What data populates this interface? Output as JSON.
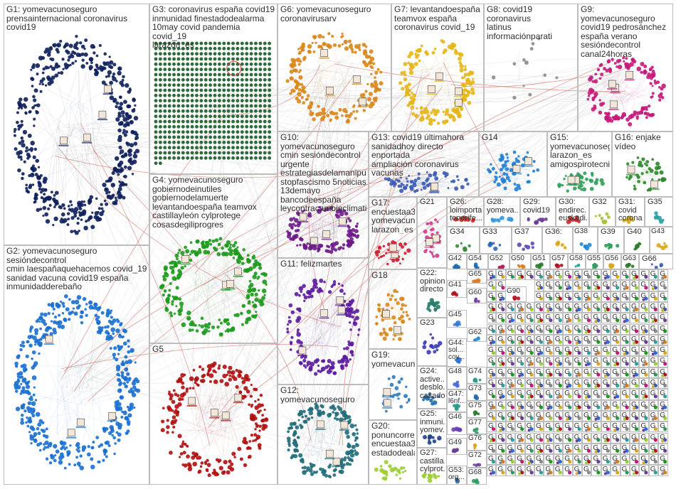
{
  "groups": [
    {
      "id": "G1",
      "title": "G1: yomevacunoseguro\nprensainternacional coronavirus covid19",
      "color": "#0d1f5c",
      "n": 460,
      "shape": "ellipse"
    },
    {
      "id": "G2",
      "title": "G2: yomevacunoseguro sesióndecontrol\ncmin laespañaquehacemos covid_19\nsanidad vacuna covid19 españa\ninmunidadderebaño",
      "color": "#1a6fd1",
      "n": 420,
      "shape": "ellipse"
    },
    {
      "id": "G3",
      "title": "G3: coronavirus españa covid19\ninmunidad finestadodealarma\n10may covid pandemia covid_19\nlarazon_es",
      "color": "#2e6b3a",
      "n": 600,
      "shape": "grid"
    },
    {
      "id": "G4",
      "title": "G4: yomevacunoseguro\ngobiernodeinutiles\ngobiernodelamuerte\nlevantandoespaña teamvox\ncastillayleón cylprotege\ncosasdegiliprogres",
      "color": "#1c9a1c",
      "n": 240,
      "shape": "ellipse"
    },
    {
      "id": "G5",
      "title": "G5",
      "color": "#b30d0d",
      "n": 220,
      "shape": "ellipse"
    },
    {
      "id": "G6",
      "title": "G6: yomevacunoseguro\ncoronavirusarv",
      "color": "#d98719",
      "n": 190,
      "shape": "ellipse"
    },
    {
      "id": "G7",
      "title": "G7: levantandoespaña\nteamvox españa\ncoronavirus covid_19",
      "color": "#e6b619",
      "n": 160,
      "shape": "ellipse"
    },
    {
      "id": "G8",
      "title": "G8: covid19 coronavirus\nlatinus informaciónparati",
      "color": "#8a8a8a",
      "n": 12,
      "shape": "ellipse"
    },
    {
      "id": "G9",
      "title": "G9: yomevacunoseguro\ncovid19 pedrosánchez\nespaña verano\nsesióndecontrol\ncanal24horas",
      "color": "#c4197a",
      "n": 130,
      "shape": "ellipse"
    },
    {
      "id": "G10",
      "title": "G10: yomevacunoseguro\ncmin sesióndecontrol\nurgente\nestrategiasdelamanipul...\nstopfascismo 5noticias\n13demayo\nbancodeespaña\nleycontracambioclimatico",
      "color": "#6e1b8a",
      "n": 120,
      "shape": "ellipse"
    },
    {
      "id": "G11",
      "title": "G11: felizmartes",
      "color": "#5c1aa0",
      "n": 150,
      "shape": "ellipse"
    },
    {
      "id": "G12",
      "title": "G12: yomevacunoseguro",
      "color": "#1f6b7a",
      "n": 170,
      "shape": "ellipse"
    },
    {
      "id": "G13",
      "title": "G13: covid19 últimahora\nsanidadhoy directo enportada\nampliación coronavirus\nvacunas",
      "color": "#3a5bb5",
      "n": 60,
      "shape": "ellipse"
    },
    {
      "id": "G14",
      "title": "G14",
      "color": "#1f7fd6",
      "n": 60,
      "shape": "ellipse"
    },
    {
      "id": "G15",
      "title": "G15:\nyomevacunoseg...\nlarazon_es\namigospirotecnia",
      "color": "#2f9e5a",
      "n": 40,
      "shape": "ellipse"
    },
    {
      "id": "G16",
      "title": "G16: enjake\nvídeo",
      "color": "#2a8a2a",
      "n": 40,
      "shape": "ellipse"
    },
    {
      "id": "G17",
      "title": "G17:\nencuestaa3n\nyomevacun...\nlarazon_es",
      "color": "#c81e2e",
      "n": 30,
      "shape": "ellipse"
    },
    {
      "id": "G18",
      "title": "G18",
      "color": "#d9861c",
      "n": 50,
      "shape": "ellipse"
    },
    {
      "id": "G19",
      "title": "G19:\nyomevacun...",
      "color": "#2f7bbf",
      "n": 25,
      "shape": "ellipse"
    },
    {
      "id": "G20",
      "title": "G20:\nponuncorre...\nencuestaa3n\nestadodeala...",
      "color": "#9acd32",
      "n": 20,
      "shape": "ellipse"
    },
    {
      "id": "G21",
      "title": "G21",
      "color": "#d03c8c",
      "n": 30,
      "shape": "ellipse"
    },
    {
      "id": "G22",
      "title": "G22:\nopinion\ndirecto",
      "color": "#2a7a6a",
      "n": 15,
      "shape": "ellipse"
    },
    {
      "id": "G23",
      "title": "G23",
      "color": "#3b3bb8",
      "n": 15,
      "shape": "ellipse"
    },
    {
      "id": "G24",
      "title": "G24:\nactive...\ndesblo...\ncasado...",
      "color": "#1f6bb0",
      "n": 12,
      "shape": "ellipse"
    },
    {
      "id": "G25",
      "title": "G25:\ninmuni...\nyomev...",
      "color": "#1f3f8a",
      "n": 10,
      "shape": "ellipse"
    },
    {
      "id": "G26",
      "title": "G26:\nloimporta...\ntenerife...",
      "color": "#d0302a",
      "n": 12,
      "shape": "ellipse"
    },
    {
      "id": "G27",
      "title": "G27:\ncastilla...\ncylprot...",
      "color": "#9acd32",
      "n": 10,
      "shape": "ellipse"
    },
    {
      "id": "G28",
      "title": "G28:\nyomeva...",
      "color": "#3a9ad9",
      "n": 10,
      "shape": "ellipse"
    },
    {
      "id": "G29",
      "title": "G29:\ncovid19",
      "color": "#6a3d9a",
      "n": 10,
      "shape": "ellipse"
    },
    {
      "id": "G30",
      "title": "G30:\nendirec...\neuskadi...",
      "color": "#c83030",
      "n": 10,
      "shape": "ellipse"
    },
    {
      "id": "G31",
      "title": "G31:\ncovid\ncorona...",
      "color": "#d9a71c",
      "n": 8,
      "shape": "ellipse"
    },
    {
      "id": "G32",
      "title": "G32",
      "color": "#aabf3a",
      "n": 8,
      "shape": "ellipse"
    },
    {
      "id": "G33",
      "title": "G33",
      "color": "#2a6ab5",
      "n": 6,
      "shape": "ellipse"
    },
    {
      "id": "G34",
      "title": "G34",
      "color": "#3b8a3b",
      "n": 6,
      "shape": "ellipse"
    },
    {
      "id": "G35",
      "title": "G35",
      "color": "#2aa0a0",
      "n": 6,
      "shape": "ellipse"
    },
    {
      "id": "G36",
      "title": "G36:",
      "color": "#d9a71c",
      "n": 6,
      "shape": "ellipse"
    },
    {
      "id": "G37",
      "title": "G37",
      "color": "#5a4ab5",
      "n": 6,
      "shape": "ellipse"
    },
    {
      "id": "G38",
      "title": "G38",
      "color": "#1f8ad6",
      "n": 6,
      "shape": "ellipse"
    },
    {
      "id": "G39",
      "title": "G39",
      "color": "#2a9a5a",
      "n": 6,
      "shape": "ellipse"
    },
    {
      "id": "G40",
      "title": "G40",
      "color": "#2a7a2a",
      "n": 6,
      "shape": "ellipse"
    },
    {
      "id": "G41",
      "title": "G41",
      "color": "#b3121e",
      "n": 5,
      "shape": "ellipse"
    },
    {
      "id": "G42",
      "title": "G42",
      "color": "#1f6ab5",
      "n": 5,
      "shape": "ellipse"
    },
    {
      "id": "G43",
      "title": "G43",
      "color": "#d9a71c",
      "n": 5,
      "shape": "ellipse"
    },
    {
      "id": "G44",
      "title": "G44:\nsol...\ncov...",
      "color": "#2a6ad9",
      "n": 5,
      "shape": "ellipse"
    },
    {
      "id": "G45",
      "title": "G45",
      "color": "#3a7ad9",
      "n": 5,
      "shape": "ellipse"
    },
    {
      "id": "G46",
      "title": "G46",
      "color": "#6a3db5",
      "n": 5,
      "shape": "ellipse"
    },
    {
      "id": "G47",
      "title": "G47:\nl6nf...",
      "color": "#2a9a8a",
      "n": 5,
      "shape": "ellipse"
    },
    {
      "id": "G48",
      "title": "G48",
      "color": "#4a6ad9",
      "n": 5,
      "shape": "ellipse"
    },
    {
      "id": "G49",
      "title": "G49",
      "color": "#6a3d9a",
      "n": 5,
      "shape": "ellipse"
    },
    {
      "id": "G50",
      "title": "G50",
      "color": "#d97a1c",
      "n": 4,
      "shape": "ellipse"
    },
    {
      "id": "G51",
      "title": "G51",
      "color": "#2a7a2a",
      "n": 4,
      "shape": "ellipse"
    },
    {
      "id": "G52",
      "title": "G52",
      "color": "#b51e5a",
      "n": 4,
      "shape": "ellipse"
    },
    {
      "id": "G53",
      "title": "G53:\norg...",
      "color": "#3a6a9a",
      "n": 4,
      "shape": "ellipse"
    },
    {
      "id": "G54",
      "title": "G54",
      "color": "#1f6ab5",
      "n": 4,
      "shape": "ellipse"
    },
    {
      "id": "G55",
      "title": "G55",
      "color": "#2a9a5a",
      "n": 4,
      "shape": "ellipse"
    },
    {
      "id": "G56",
      "title": "G56",
      "color": "#d9a71c",
      "n": 4,
      "shape": "ellipse"
    },
    {
      "id": "G57",
      "title": "G57",
      "color": "#b3121e",
      "n": 4,
      "shape": "ellipse"
    },
    {
      "id": "G58",
      "title": "G58",
      "color": "#2aa0a0",
      "n": 4,
      "shape": "ellipse"
    },
    {
      "id": "G60",
      "title": "G60",
      "color": "#6a3d9a",
      "n": 4,
      "shape": "ellipse"
    },
    {
      "id": "G62",
      "title": "G62",
      "color": "#1f8ad6",
      "n": 4,
      "shape": "ellipse"
    },
    {
      "id": "G63",
      "title": "G63",
      "color": "#2a7a2a",
      "n": 4,
      "shape": "ellipse"
    },
    {
      "id": "G65",
      "title": "G65",
      "color": "#d97a1c",
      "n": 4,
      "shape": "ellipse"
    },
    {
      "id": "G66",
      "title": "G66",
      "color": "#3a5bb5",
      "n": 4,
      "shape": "ellipse"
    },
    {
      "id": "G68",
      "title": "G68",
      "color": "#2a9a5a",
      "n": 4,
      "shape": "ellipse"
    },
    {
      "id": "G72",
      "title": "G72",
      "color": "#6a3d9a",
      "n": 4,
      "shape": "ellipse"
    },
    {
      "id": "G73",
      "title": "G73",
      "color": "#1f6ab5",
      "n": 4,
      "shape": "ellipse"
    },
    {
      "id": "G74",
      "title": "G74",
      "color": "#2a9a8a",
      "n": 4,
      "shape": "ellipse"
    },
    {
      "id": "G75",
      "title": "G75",
      "color": "#2a7a2a",
      "n": 4,
      "shape": "ellipse"
    },
    {
      "id": "G76",
      "title": "G76",
      "color": "#d9a71c",
      "n": 4,
      "shape": "ellipse"
    },
    {
      "id": "G77",
      "title": "G77",
      "color": "#2a9a5a",
      "n": 4,
      "shape": "ellipse"
    },
    {
      "id": "G90",
      "title": "G90",
      "color": "#b3121e",
      "n": 3,
      "shape": "ellipse"
    }
  ],
  "small_cell_label": "G",
  "small_cell_palette": [
    "#2a6ad9",
    "#d9a71c",
    "#2a9a5a",
    "#b3121e",
    "#6a3d9a",
    "#2aa0a0",
    "#d97a1c",
    "#9acd32",
    "#c4197a",
    "#3a5bb5",
    "#8a8a8a",
    "#1c9a1c"
  ],
  "edge_color": "#999999",
  "highlight_edge_color": "#c0392b"
}
